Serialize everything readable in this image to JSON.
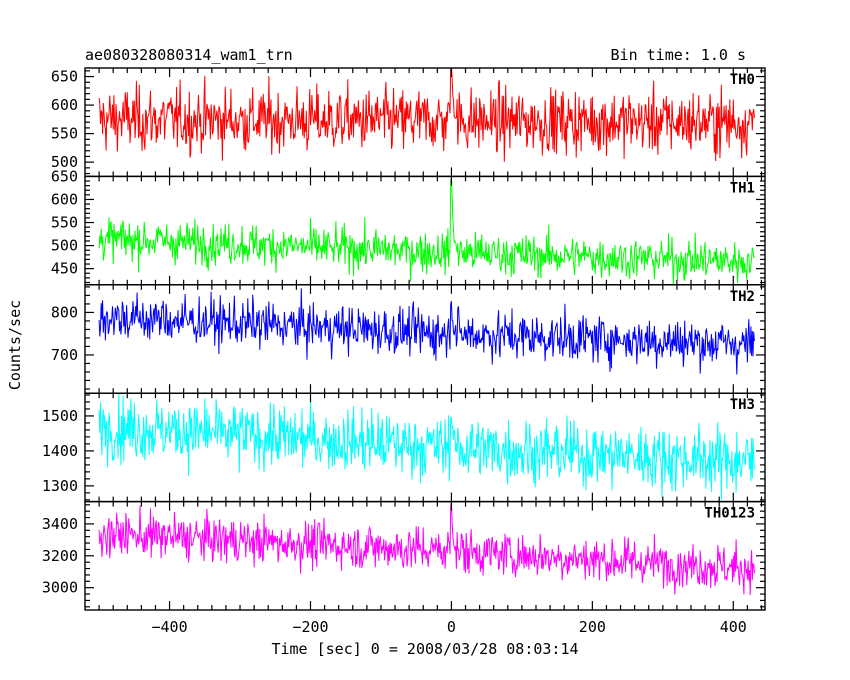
{
  "chart_data": {
    "type": "line",
    "title": "ae080328080314_wam1_trn",
    "subtitle": "Bin time: 1.0 s",
    "xlabel": "Time [sec] 0 = 2008/03/28 08:03:14",
    "ylabel": "Counts/sec",
    "xlim": [
      -520,
      445
    ],
    "x_ticks": [
      -400,
      -200,
      0,
      200,
      400
    ],
    "x_tick_labels": [
      "−400",
      "−200",
      "0",
      "200",
      "400"
    ],
    "x_data_range": [
      -500,
      430
    ],
    "grid": false,
    "panels": [
      {
        "name": "TH0",
        "color": "#ff0000",
        "ylim": [
          475,
          665
        ],
        "y_ticks": [
          500,
          550,
          600,
          650
        ],
        "trend": [
          [
            -500,
            575
          ],
          [
            430,
            570
          ]
        ],
        "noise_sd": 28,
        "peak": {
          "x": 0,
          "value": 665
        }
      },
      {
        "name": "TH1",
        "color": "#00ff00",
        "ylim": [
          415,
          650
        ],
        "y_ticks": [
          450,
          500,
          550,
          600,
          650
        ],
        "trend": [
          [
            -500,
            515
          ],
          [
            0,
            485
          ],
          [
            430,
            465
          ]
        ],
        "noise_sd": 22,
        "peak": {
          "x": 0,
          "value": 650
        }
      },
      {
        "name": "TH2",
        "color": "#0000ff",
        "ylim": [
          610,
          865
        ],
        "y_ticks": [
          700,
          800
        ],
        "trend": [
          [
            -500,
            790
          ],
          [
            0,
            750
          ],
          [
            430,
            725
          ]
        ],
        "noise_sd": 28,
        "peak": {
          "x": 0,
          "value": 820
        }
      },
      {
        "name": "TH3",
        "color": "#00ffff",
        "ylim": [
          1255,
          1565
        ],
        "y_ticks": [
          1300,
          1400,
          1500
        ],
        "trend": [
          [
            -500,
            1470
          ],
          [
            0,
            1410
          ],
          [
            430,
            1370
          ]
        ],
        "noise_sd": 45,
        "peak": {
          "x": 0,
          "value": 1500
        }
      },
      {
        "name": "TH0123",
        "color": "#ff00ff",
        "ylim": [
          2860,
          3540
        ],
        "y_ticks": [
          3000,
          3200,
          3400
        ],
        "trend": [
          [
            -500,
            3340
          ],
          [
            0,
            3230
          ],
          [
            430,
            3120
          ]
        ],
        "noise_sd": 70,
        "peak": {
          "x": 0,
          "value": 3520
        }
      }
    ]
  }
}
